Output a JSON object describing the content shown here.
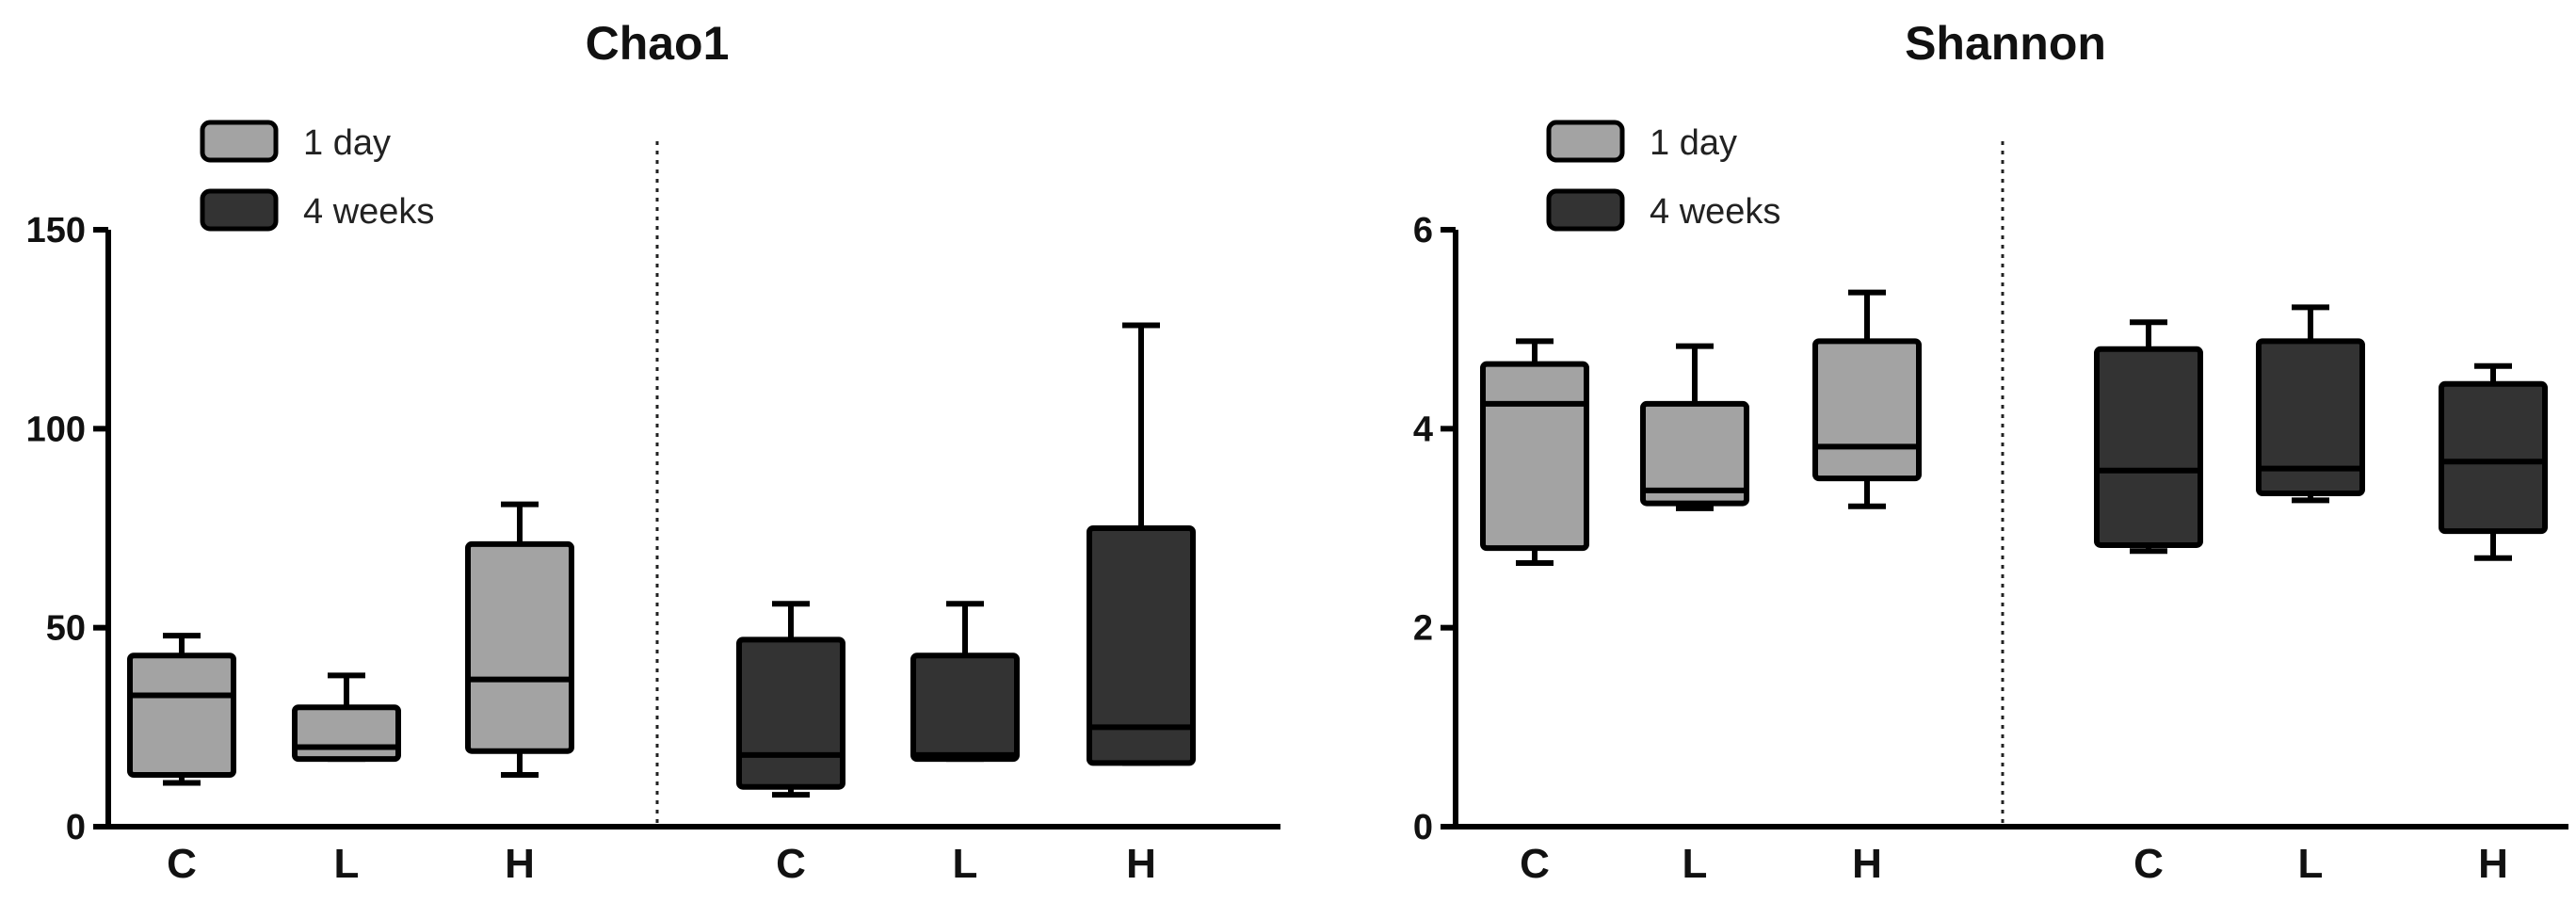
{
  "chart_data": [
    {
      "type": "box",
      "title": "Chao1",
      "xlabel": "",
      "ylabel": "",
      "ylim": [
        0,
        150
      ],
      "yticks": [
        0,
        50,
        100,
        150
      ],
      "legend": {
        "position": "top-left",
        "entries": [
          {
            "label": "1 day",
            "color": "#a3a3a3"
          },
          {
            "label": "4 weeks",
            "color": "#333333"
          }
        ]
      },
      "groups": [
        {
          "series": "1 day",
          "color": "#a3a3a3",
          "boxes": [
            {
              "category": "C",
              "min": 11,
              "q1": 13,
              "median": 33,
              "q3": 43,
              "max": 48
            },
            {
              "category": "L",
              "min": 17,
              "q1": 17,
              "median": 20,
              "q3": 30,
              "max": 38
            },
            {
              "category": "H",
              "min": 13,
              "q1": 19,
              "median": 37,
              "q3": 71,
              "max": 81
            }
          ]
        },
        {
          "series": "4 weeks",
          "color": "#333333",
          "boxes": [
            {
              "category": "C",
              "min": 8,
              "q1": 10,
              "median": 18,
              "q3": 47,
              "max": 56
            },
            {
              "category": "L",
              "min": 17,
              "q1": 17,
              "median": 18,
              "q3": 43,
              "max": 56
            },
            {
              "category": "H",
              "min": 16,
              "q1": 16,
              "median": 25,
              "q3": 75,
              "max": 126
            }
          ]
        }
      ]
    },
    {
      "type": "box",
      "title": "Shannon",
      "xlabel": "",
      "ylabel": "",
      "ylim": [
        0,
        6
      ],
      "yticks": [
        0,
        2,
        4,
        6
      ],
      "legend": {
        "position": "top-left",
        "entries": [
          {
            "label": "1 day",
            "color": "#a3a3a3"
          },
          {
            "label": "4 weeks",
            "color": "#333333"
          }
        ]
      },
      "groups": [
        {
          "series": "1 day",
          "color": "#a3a3a3",
          "boxes": [
            {
              "category": "C",
              "min": 2.65,
              "q1": 2.8,
              "median": 4.25,
              "q3": 4.65,
              "max": 4.88
            },
            {
              "category": "L",
              "min": 3.2,
              "q1": 3.25,
              "median": 3.38,
              "q3": 4.25,
              "max": 4.83
            },
            {
              "category": "H",
              "min": 3.22,
              "q1": 3.5,
              "median": 3.82,
              "q3": 4.88,
              "max": 5.37
            }
          ]
        },
        {
          "series": "4 weeks",
          "color": "#333333",
          "boxes": [
            {
              "category": "C",
              "min": 2.77,
              "q1": 2.83,
              "median": 3.58,
              "q3": 4.8,
              "max": 5.07
            },
            {
              "category": "L",
              "min": 3.28,
              "q1": 3.35,
              "median": 3.6,
              "q3": 4.88,
              "max": 5.22
            },
            {
              "category": "H",
              "min": 2.7,
              "q1": 2.97,
              "median": 3.67,
              "q3": 4.45,
              "max": 4.63
            }
          ]
        }
      ]
    }
  ]
}
